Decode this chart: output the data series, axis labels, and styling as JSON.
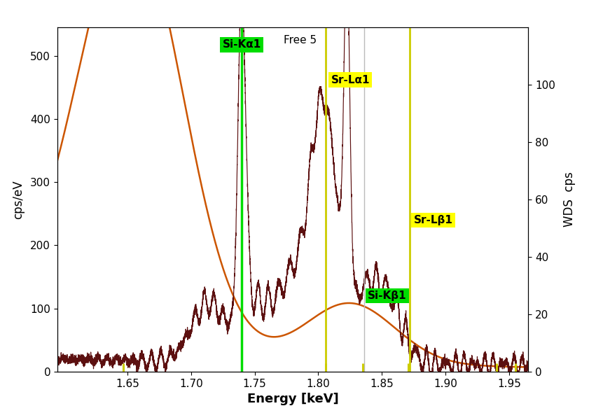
{
  "xlabel": "Energy [keV]",
  "ylabel_left": "cps/eV",
  "ylabel_right": "WDS  cps",
  "xlim": [
    1.595,
    1.965
  ],
  "ylim_left": [
    0,
    545
  ],
  "ylim_right": [
    0,
    120
  ],
  "background_color": "#ffffff",
  "free5_label": "Free 5",
  "free5_x": 1.773,
  "free5_y": 533,
  "si_ka1_x": 1.74,
  "si_kb1_x": 1.8359,
  "sr_la1_x": 1.806,
  "sr_lb1_x": 1.872,
  "green_line_color": "#00dd00",
  "yellow_line_color": "#cccc00",
  "gray_line_color": "#bbbbbb",
  "green_label_bg": "#00dd00",
  "yellow_label_bg": "#ffff00",
  "eds_color": "#cc5500",
  "wds_color": "#5c1010",
  "xticks": [
    1.65,
    1.7,
    1.75,
    1.8,
    1.85,
    1.9,
    1.95
  ],
  "yticks_left": [
    0,
    100,
    200,
    300,
    400,
    500
  ],
  "yticks_right": [
    0,
    20,
    40,
    60,
    80,
    100
  ],
  "tick_marks_yellow_x": [
    1.647,
    1.806,
    1.835,
    1.871,
    1.94,
    1.955
  ],
  "wds_scale_factor": 4.5416
}
